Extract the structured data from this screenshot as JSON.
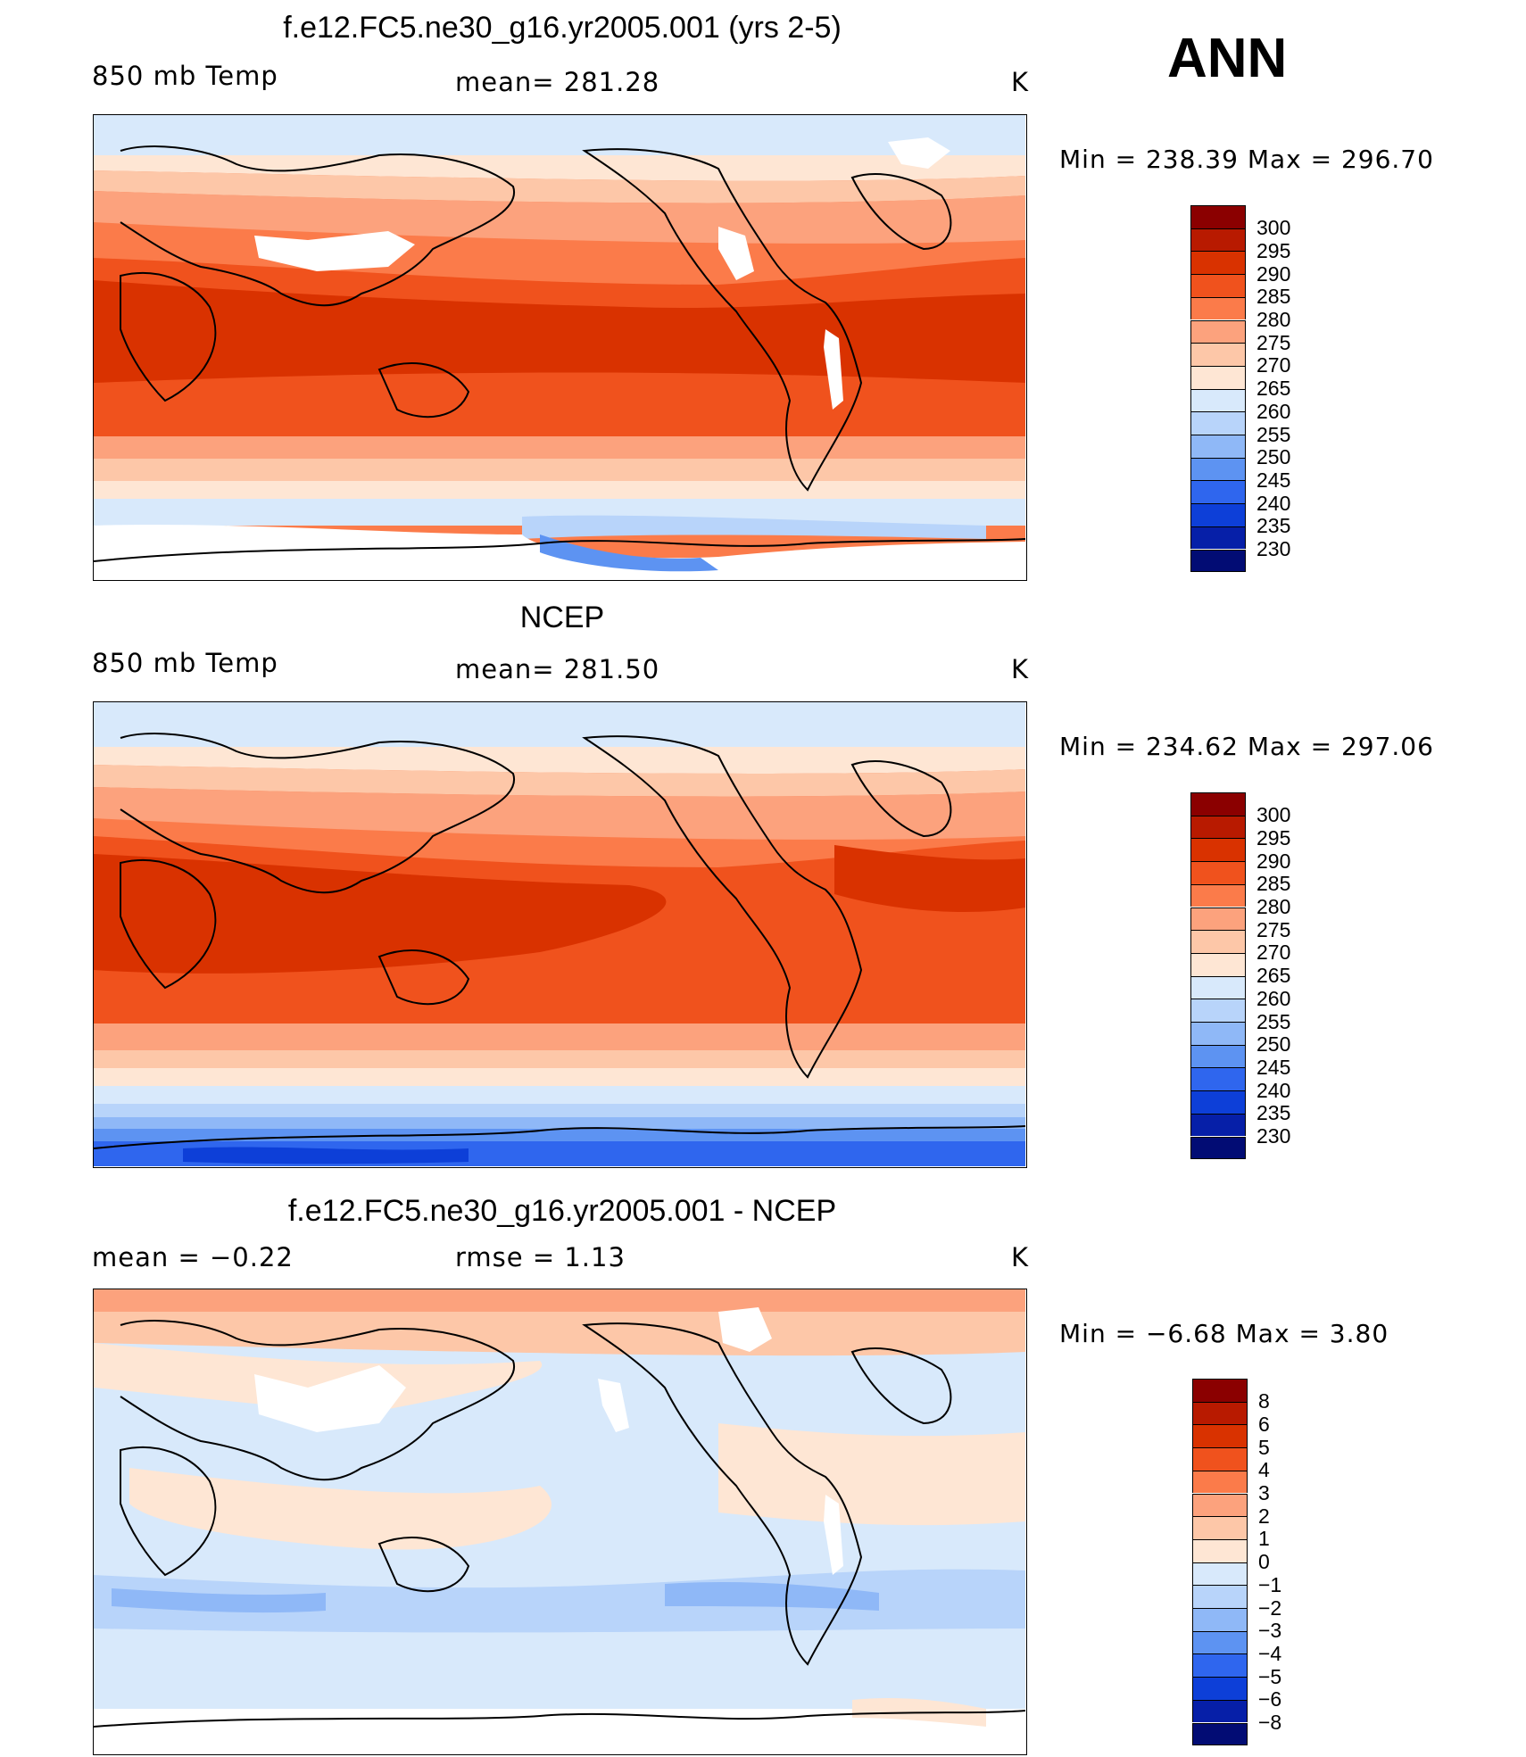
{
  "season": "ANN",
  "panels": [
    {
      "id": "model",
      "title": "f.e12.FC5.ne30_g16.yr2005.001 (yrs 2-5)",
      "left_label": "850 mb Temp",
      "center_label": "mean= 281.28",
      "right_label": "K",
      "minmax": "Min  =  238.39  Max  =  296.70",
      "colorbar_labels": [
        "300",
        "295",
        "290",
        "285",
        "280",
        "275",
        "270",
        "265",
        "260",
        "255",
        "250",
        "245",
        "240",
        "235",
        "230"
      ]
    },
    {
      "id": "obs",
      "title": "NCEP",
      "left_label": "850 mb Temp",
      "center_label": "mean= 281.50",
      "right_label": "K",
      "minmax": "Min  =  234.62  Max  =  297.06",
      "colorbar_labels": [
        "300",
        "295",
        "290",
        "285",
        "280",
        "275",
        "270",
        "265",
        "260",
        "255",
        "250",
        "245",
        "240",
        "235",
        "230"
      ]
    },
    {
      "id": "diff",
      "title": "f.e12.FC5.ne30_g16.yr2005.001 - NCEP",
      "left_label": "mean  =    −0.22",
      "center_label": "rmse  =     1.13",
      "right_label": "K",
      "minmax": "Min  =    −6.68  Max  =     3.80",
      "colorbar_labels": [
        "8",
        "6",
        "5",
        "4",
        "3",
        "2",
        "1",
        "0",
        "−1",
        "−2",
        "−3",
        "−4",
        "−5",
        "−6",
        "−8"
      ]
    }
  ],
  "colors": {
    "abs_scale": [
      "#8b0000",
      "#b81a00",
      "#d93200",
      "#f0521d",
      "#fb7b4a",
      "#fca27d",
      "#fdc7a8",
      "#fee6d4",
      "#d8e9fb",
      "#b8d4fa",
      "#8fb8f7",
      "#5d93f2",
      "#2f66ee",
      "#0d3fd8",
      "#061fa8",
      "#020c74"
    ],
    "diff_scale": [
      "#8b0000",
      "#b81a00",
      "#d93200",
      "#f0521d",
      "#fb7b4a",
      "#fca27d",
      "#fdc7a8",
      "#fee6d4",
      "#d8e9fb",
      "#b8d4fa",
      "#8fb8f7",
      "#5d93f2",
      "#2f66ee",
      "#0d3fd8",
      "#061fa8",
      "#020c74"
    ]
  }
}
